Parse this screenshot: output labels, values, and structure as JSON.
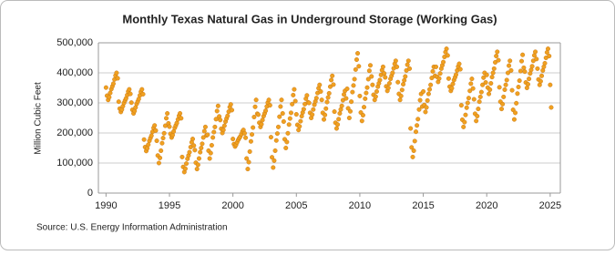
{
  "chart_data": {
    "type": "scatter",
    "title": "Monthly Texas Natural Gas in Underground Storage (Working Gas)",
    "y_label": "Million Cubic Feet",
    "source": "Source: U.S. Energy Information Administration",
    "xlim": [
      1989.4,
      2025.8
    ],
    "xticks": [
      1990,
      1995,
      2000,
      2005,
      2010,
      2015,
      2020,
      2025
    ],
    "ylim": [
      0,
      500000
    ],
    "yticks": [
      0,
      {
        "value": 100000,
        "label": "100,000"
      },
      {
        "value": 200000,
        "label": "200,000"
      },
      {
        "value": 300000,
        "label": "300,000"
      },
      {
        "value": 400000,
        "label": "400,000"
      },
      {
        "value": 500000,
        "label": "500,000"
      }
    ],
    "grid": true,
    "series": [
      {
        "color": "#f0a020",
        "x": [
          1990,
          1990.08,
          1990.17,
          1990.25,
          1990.33,
          1990.42,
          1990.5,
          1990.58,
          1990.67,
          1990.75,
          1990.83,
          1990.92,
          1991,
          1991.08,
          1991.17,
          1991.25,
          1991.33,
          1991.42,
          1991.5,
          1991.58,
          1991.67,
          1991.75,
          1991.83,
          1991.92,
          1992,
          1992.08,
          1992.17,
          1992.25,
          1992.33,
          1992.42,
          1992.5,
          1992.58,
          1992.67,
          1992.75,
          1992.83,
          1992.92,
          1993,
          1993.08,
          1993.17,
          1993.25,
          1993.33,
          1993.42,
          1993.5,
          1993.58,
          1993.67,
          1993.75,
          1993.83,
          1993.92,
          1994,
          1994.08,
          1994.17,
          1994.25,
          1994.33,
          1994.42,
          1994.5,
          1994.58,
          1994.67,
          1994.75,
          1994.83,
          1994.92,
          1995,
          1995.08,
          1995.17,
          1995.25,
          1995.33,
          1995.42,
          1995.5,
          1995.58,
          1995.67,
          1995.75,
          1995.83,
          1995.92,
          1996,
          1996.08,
          1996.17,
          1996.25,
          1996.33,
          1996.42,
          1996.5,
          1996.58,
          1996.67,
          1996.75,
          1996.83,
          1996.92,
          1997,
          1997.08,
          1997.17,
          1997.25,
          1997.33,
          1997.42,
          1997.5,
          1997.58,
          1997.67,
          1997.75,
          1997.83,
          1997.92,
          1998,
          1998.08,
          1998.17,
          1998.25,
          1998.33,
          1998.42,
          1998.5,
          1998.58,
          1998.67,
          1998.75,
          1998.83,
          1998.92,
          1999,
          1999.08,
          1999.17,
          1999.25,
          1999.33,
          1999.42,
          1999.5,
          1999.58,
          1999.67,
          1999.75,
          1999.83,
          1999.92,
          2000,
          2000.08,
          2000.17,
          2000.25,
          2000.33,
          2000.42,
          2000.5,
          2000.58,
          2000.67,
          2000.75,
          2000.83,
          2000.92,
          2001,
          2001.08,
          2001.17,
          2001.25,
          2001.33,
          2001.42,
          2001.5,
          2001.58,
          2001.67,
          2001.75,
          2001.83,
          2001.92,
          2002,
          2002.08,
          2002.17,
          2002.25,
          2002.33,
          2002.42,
          2002.5,
          2002.58,
          2002.67,
          2002.75,
          2002.83,
          2002.92,
          2003,
          2003.08,
          2003.17,
          2003.25,
          2003.33,
          2003.42,
          2003.5,
          2003.58,
          2003.67,
          2003.75,
          2003.83,
          2003.92,
          2004,
          2004.08,
          2004.17,
          2004.25,
          2004.33,
          2004.42,
          2004.5,
          2004.58,
          2004.67,
          2004.75,
          2004.83,
          2004.92,
          2005,
          2005.08,
          2005.17,
          2005.25,
          2005.33,
          2005.42,
          2005.5,
          2005.58,
          2005.67,
          2005.75,
          2005.83,
          2005.92,
          2006,
          2006.08,
          2006.17,
          2006.25,
          2006.33,
          2006.42,
          2006.5,
          2006.58,
          2006.67,
          2006.75,
          2006.83,
          2006.92,
          2007,
          2007.08,
          2007.17,
          2007.25,
          2007.33,
          2007.42,
          2007.5,
          2007.58,
          2007.67,
          2007.75,
          2007.83,
          2007.92,
          2008,
          2008.08,
          2008.17,
          2008.25,
          2008.33,
          2008.42,
          2008.5,
          2008.58,
          2008.67,
          2008.75,
          2008.83,
          2008.92,
          2009,
          2009.08,
          2009.17,
          2009.25,
          2009.33,
          2009.42,
          2009.5,
          2009.58,
          2009.67,
          2009.75,
          2009.83,
          2009.92,
          2010,
          2010.08,
          2010.17,
          2010.25,
          2010.33,
          2010.42,
          2010.5,
          2010.58,
          2010.67,
          2010.75,
          2010.83,
          2010.92,
          2011,
          2011.08,
          2011.17,
          2011.25,
          2011.33,
          2011.42,
          2011.5,
          2011.58,
          2011.67,
          2011.75,
          2011.83,
          2011.92,
          2012,
          2012.08,
          2012.17,
          2012.25,
          2012.33,
          2012.42,
          2012.5,
          2012.58,
          2012.67,
          2012.75,
          2012.83,
          2012.92,
          2013,
          2013.08,
          2013.17,
          2013.25,
          2013.33,
          2013.42,
          2013.5,
          2013.58,
          2013.67,
          2013.75,
          2013.83,
          2013.92,
          2014,
          2014.08,
          2014.17,
          2014.25,
          2014.33,
          2014.42,
          2014.5,
          2014.58,
          2014.67,
          2014.75,
          2014.83,
          2014.92,
          2015,
          2015.08,
          2015.17,
          2015.25,
          2015.33,
          2015.42,
          2015.5,
          2015.58,
          2015.67,
          2015.75,
          2015.83,
          2015.92,
          2016,
          2016.08,
          2016.17,
          2016.25,
          2016.33,
          2016.42,
          2016.5,
          2016.58,
          2016.67,
          2016.75,
          2016.83,
          2016.92,
          2017,
          2017.08,
          2017.17,
          2017.25,
          2017.33,
          2017.42,
          2017.5,
          2017.58,
          2017.67,
          2017.75,
          2017.83,
          2017.92,
          2018,
          2018.08,
          2018.17,
          2018.25,
          2018.33,
          2018.42,
          2018.5,
          2018.58,
          2018.67,
          2018.75,
          2018.83,
          2018.92,
          2019,
          2019.08,
          2019.17,
          2019.25,
          2019.33,
          2019.42,
          2019.5,
          2019.58,
          2019.67,
          2019.75,
          2019.83,
          2019.92,
          2020,
          2020.08,
          2020.17,
          2020.25,
          2020.33,
          2020.42,
          2020.5,
          2020.58,
          2020.67,
          2020.75,
          2020.83,
          2020.92,
          2021,
          2021.08,
          2021.17,
          2021.25,
          2021.33,
          2021.42,
          2021.5,
          2021.58,
          2021.67,
          2021.75,
          2021.83,
          2021.92,
          2022,
          2022.08,
          2022.17,
          2022.25,
          2022.33,
          2022.42,
          2022.5,
          2022.58,
          2022.67,
          2022.75,
          2022.83,
          2022.92,
          2023,
          2023.08,
          2023.17,
          2023.25,
          2023.33,
          2023.42,
          2023.5,
          2023.58,
          2023.67,
          2023.75,
          2023.83,
          2023.92,
          2024,
          2024.08,
          2024.17,
          2024.25,
          2024.33,
          2024.42,
          2024.5,
          2024.58,
          2024.67,
          2024.75,
          2024.83,
          2024.92,
          2025,
          2025.08
        ],
        "values": [
          351000,
          324000,
          310000,
          319000,
          333000,
          346000,
          355000,
          364000,
          378000,
          391000,
          400000,
          382000,
          304000,
          281000,
          270000,
          278000,
          289000,
          300000,
          308000,
          315000,
          326000,
          338000,
          345000,
          330000,
          301000,
          277000,
          265000,
          273000,
          285000,
          297000,
          305000,
          313000,
          325000,
          337000,
          345000,
          329000,
          178000,
          153000,
          140000,
          149000,
          161000,
          174000,
          183000,
          191000,
          204000,
          217000,
          225000,
          208000,
          174000,
          125000,
          100000,
          117000,
          141000,
          166000,
          183000,
          199000,
          224000,
          249000,
          265000,
          232000,
          221000,
          197000,
          185000,
          193000,
          205000,
          217000,
          225000,
          233000,
          245000,
          257000,
          265000,
          249000,
          120000,
          87000,
          70000,
          81000,
          98000,
          114000,
          125000,
          136000,
          153000,
          169000,
          180000,
          158000,
          143000,
          101000,
          80000,
          94000,
          115000,
          136000,
          150000,
          164000,
          185000,
          206000,
          220000,
          192000,
          194000,
          141000,
          115000,
          133000,
          159000,
          185000,
          203000,
          220000,
          246000,
          273000,
          290000,
          255000,
          243000,
          214000,
          200000,
          210000,
          224000,
          238000,
          248000,
          257000,
          271000,
          286000,
          295000,
          276000,
          180000,
          163000,
          155000,
          161000,
          169000,
          177000,
          183000,
          188000,
          196000,
          205000,
          210000,
          199000,
          184000,
          115000,
          80000,
          103000,
          138000,
          172000,
          195000,
          218000,
          253000,
          287000,
          310000,
          264000,
          261000,
          234000,
          220000,
          229000,
          243000,
          256000,
          265000,
          274000,
          288000,
          301000,
          310000,
          292000,
          186000,
          119000,
          85000,
          108000,
          141000,
          175000,
          198000,
          220000,
          254000,
          288000,
          310000,
          265000,
          238000,
          179000,
          150000,
          170000,
          199000,
          228000,
          248000,
          267000,
          296000,
          326000,
          345000,
          306000,
          262000,
          227000,
          210000,
          222000,
          239000,
          256000,
          268000,
          279000,
          296000,
          314000,
          325000,
          302000,
          300000,
          267000,
          250000,
          261000,
          278000,
          294000,
          305000,
          316000,
          333000,
          349000,
          360000,
          338000,
          310000,
          267000,
          245000,
          260000,
          281000,
          303000,
          318000,
          332000,
          354000,
          376000,
          390000,
          361000,
          271000,
          234000,
          215000,
          228000,
          246000,
          265000,
          278000,
          290000,
          309000,
          328000,
          340000,
          315000,
          347000,
          282000,
          250000,
          272000,
          304000,
          336000,
          358000,
          379000,
          411000,
          444000,
          465000,
          422000,
          323000,
          268000,
          240000,
          259000,
          286000,
          314000,
          333000,
          351000,
          379000,
          407000,
          425000,
          388000,
          360000,
          327000,
          310000,
          321000,
          338000,
          354000,
          365000,
          376000,
          393000,
          409000,
          420000,
          398000,
          385000,
          355000,
          340000,
          350000,
          365000,
          380000,
          390000,
          400000,
          415000,
          430000,
          440000,
          420000,
          369000,
          330000,
          310000,
          323000,
          343000,
          362000,
          375000,
          388000,
          408000,
          427000,
          440000,
          414000,
          215000,
          152000,
          120000,
          141000,
          173000,
          204000,
          225000,
          246000,
          278000,
          309000,
          330000,
          288000,
          338000,
          293000,
          270000,
          285000,
          308000,
          330000,
          345000,
          360000,
          383000,
          405000,
          420000,
          390000,
          420000,
          387000,
          370000,
          381000,
          398000,
          414000,
          425000,
          436000,
          453000,
          469000,
          480000,
          458000,
          381000,
          354000,
          340000,
          349000,
          363000,
          376000,
          385000,
          394000,
          408000,
          421000,
          430000,
          412000,
          292000,
          244000,
          220000,
          236000,
          260000,
          284000,
          300000,
          316000,
          340000,
          364000,
          380000,
          348000,
          312000,
          264000,
          240000,
          256000,
          280000,
          304000,
          320000,
          336000,
          360000,
          384000,
          400000,
          368000,
          393000,
          351000,
          330000,
          344000,
          365000,
          386000,
          400000,
          414000,
          435000,
          456000,
          470000,
          442000,
          352000,
          304000,
          280000,
          296000,
          320000,
          344000,
          360000,
          376000,
          400000,
          424000,
          440000,
          408000,
          342000,
          277000,
          245000,
          267000,
          299000,
          331000,
          353000,
          374000,
          406000,
          439000,
          460000,
          417000,
          404000,
          368000,
          350000,
          362000,
          380000,
          398000,
          410000,
          422000,
          440000,
          458000,
          470000,
          446000,
          414000,
          378000,
          360000,
          372000,
          390000,
          408000,
          420000,
          432000,
          450000,
          468000,
          480000,
          456000,
          360000,
          285000
        ]
      }
    ]
  }
}
